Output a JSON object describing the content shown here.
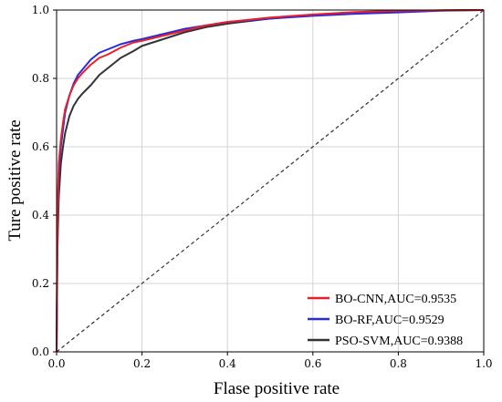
{
  "chart_data": {
    "type": "line",
    "xlabel": "Flase positive rate",
    "ylabel": "Ture positive rate",
    "xlim": [
      0,
      1
    ],
    "ylim": [
      0,
      1
    ],
    "x_ticks": [
      "0.0",
      "0.2",
      "0.4",
      "0.6",
      "0.8",
      "1.0"
    ],
    "y_ticks": [
      "0.0",
      "0.2",
      "0.4",
      "0.6",
      "0.8",
      "1.0"
    ],
    "grid": true,
    "legend_position": "bottom-right",
    "diagonal_reference": true,
    "series": [
      {
        "name": "BO-CNN,AUC=0.9535",
        "color": "#e8202a",
        "x": [
          0,
          0.002,
          0.005,
          0.01,
          0.015,
          0.02,
          0.03,
          0.04,
          0.05,
          0.06,
          0.08,
          0.1,
          0.12,
          0.15,
          0.18,
          0.2,
          0.25,
          0.3,
          0.35,
          0.4,
          0.5,
          0.6,
          0.7,
          0.8,
          0.9,
          1.0
        ],
        "y": [
          0,
          0.4,
          0.55,
          0.62,
          0.67,
          0.71,
          0.75,
          0.78,
          0.8,
          0.815,
          0.84,
          0.86,
          0.87,
          0.89,
          0.905,
          0.91,
          0.925,
          0.94,
          0.955,
          0.965,
          0.978,
          0.987,
          0.994,
          0.998,
          0.999,
          1.0
        ]
      },
      {
        "name": "BO-RF,AUC=0.9529",
        "color": "#2a2ae0",
        "x": [
          0,
          0.002,
          0.005,
          0.01,
          0.015,
          0.02,
          0.03,
          0.04,
          0.05,
          0.06,
          0.08,
          0.1,
          0.12,
          0.15,
          0.18,
          0.2,
          0.25,
          0.3,
          0.35,
          0.4,
          0.5,
          0.6,
          0.7,
          0.8,
          0.9,
          1.0
        ],
        "y": [
          0,
          0.38,
          0.52,
          0.6,
          0.65,
          0.7,
          0.75,
          0.785,
          0.81,
          0.825,
          0.855,
          0.875,
          0.885,
          0.9,
          0.91,
          0.915,
          0.93,
          0.945,
          0.955,
          0.965,
          0.975,
          0.983,
          0.989,
          0.993,
          0.998,
          1.0
        ]
      },
      {
        "name": "PSO-SVM,AUC=0.9388",
        "color": "#333333",
        "x": [
          0,
          0.002,
          0.005,
          0.01,
          0.015,
          0.02,
          0.03,
          0.04,
          0.05,
          0.06,
          0.08,
          0.1,
          0.12,
          0.15,
          0.18,
          0.2,
          0.25,
          0.3,
          0.35,
          0.4,
          0.5,
          0.6,
          0.7,
          0.8,
          0.9,
          1.0
        ],
        "y": [
          0,
          0.3,
          0.45,
          0.55,
          0.6,
          0.64,
          0.69,
          0.72,
          0.74,
          0.755,
          0.78,
          0.81,
          0.83,
          0.86,
          0.88,
          0.895,
          0.915,
          0.935,
          0.95,
          0.96,
          0.975,
          0.985,
          0.992,
          0.996,
          0.999,
          1.0
        ]
      }
    ]
  }
}
